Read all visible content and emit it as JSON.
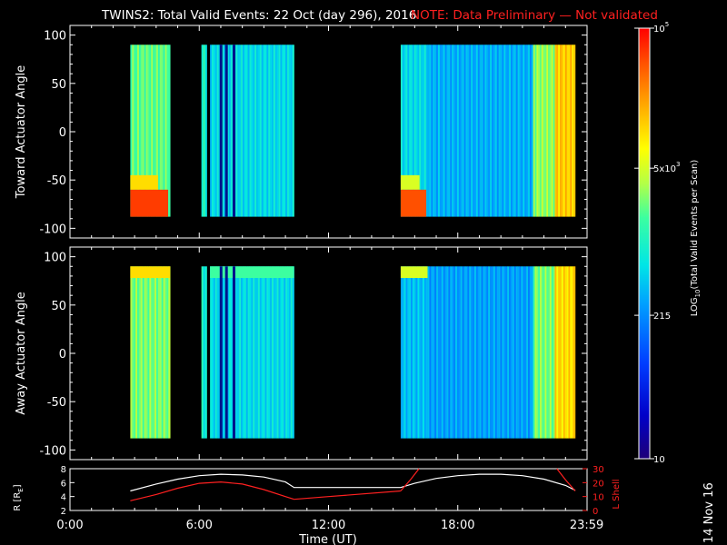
{
  "header": {
    "title": "TWINS2: Total Valid Events: 22 Oct (day 296), 2016",
    "note": "NOTE: Data Preliminary — Not validated"
  },
  "colorbar": {
    "label_prefix": "LOG",
    "label_sub": "10",
    "label_suffix": "(Total Valid  Events per Scan)",
    "ticks": [
      {
        "value": 100000,
        "text": "10",
        "sup": "5"
      },
      {
        "value": 5000,
        "text": "5x10",
        "sup": "3"
      },
      {
        "value": 215,
        "text": "215",
        "sup": ""
      },
      {
        "value": 10,
        "text": "10",
        "sup": ""
      }
    ]
  },
  "footer": {
    "stamp": "14 Nov 16"
  },
  "chart_data": [
    {
      "type": "heatmap",
      "title": "",
      "ylabel": "Toward Actuator Angle",
      "xlabel": "",
      "xlim": [
        0,
        24
      ],
      "ylim": [
        -110,
        110
      ],
      "yticks": [
        100,
        50,
        0,
        -50,
        -100
      ],
      "ytick_labels": [
        "100",
        "50",
        "0",
        "-50",
        "-100"
      ],
      "y_extent": [
        -88,
        90
      ],
      "colorscale": "log10",
      "color_range": [
        10,
        100000
      ],
      "data_intervals_hours": [
        [
          2.8,
          4.65
        ],
        [
          6.1,
          6.35
        ],
        [
          6.5,
          10.4
        ],
        [
          15.35,
          23.45
        ]
      ],
      "dark_stripes_hours": [
        6.95,
        7.2,
        7.55
      ],
      "columns": [
        {
          "t0": 2.8,
          "t1": 4.65,
          "level": 2.9,
          "low_angle_level": 4.7
        },
        {
          "t0": 6.1,
          "t1": 6.35,
          "level": 2.5
        },
        {
          "t0": 6.5,
          "t1": 10.4,
          "level": 2.2
        },
        {
          "t0": 15.35,
          "t1": 16.6,
          "level": 2.2,
          "low_angle_level": 4.6
        },
        {
          "t0": 16.6,
          "t1": 21.5,
          "level": 1.9
        },
        {
          "t0": 21.5,
          "t1": 22.5,
          "level": 3.1
        },
        {
          "t0": 22.5,
          "t1": 23.45,
          "level": 3.9
        }
      ]
    },
    {
      "type": "heatmap",
      "title": "",
      "ylabel": "Away Actuator Angle",
      "xlabel": "",
      "xlim": [
        0,
        24
      ],
      "ylim": [
        -110,
        110
      ],
      "yticks": [
        100,
        50,
        0,
        -50,
        -100
      ],
      "ytick_labels": [
        "100",
        "50",
        "0",
        "-50",
        "-100"
      ],
      "y_extent": [
        -88,
        90
      ],
      "colorscale": "log10",
      "color_range": [
        10,
        100000
      ],
      "data_intervals_hours": [
        [
          2.8,
          4.65
        ],
        [
          6.1,
          6.35
        ],
        [
          6.5,
          10.4
        ],
        [
          15.35,
          23.45
        ]
      ],
      "dark_stripes_hours": [
        6.95,
        7.2,
        7.55
      ],
      "columns": [
        {
          "t0": 2.8,
          "t1": 4.65,
          "level": 3.0,
          "high_angle_level": 3.8
        },
        {
          "t0": 6.1,
          "t1": 6.35,
          "level": 2.4
        },
        {
          "t0": 6.5,
          "t1": 10.4,
          "level": 2.2,
          "high_angle_level": 2.8
        },
        {
          "t0": 15.35,
          "t1": 16.6,
          "level": 2.0,
          "high_angle_level": 3.4
        },
        {
          "t0": 16.6,
          "t1": 21.5,
          "level": 1.8
        },
        {
          "t0": 21.5,
          "t1": 22.5,
          "level": 3.0
        },
        {
          "t0": 22.5,
          "t1": 23.45,
          "level": 3.8
        }
      ]
    },
    {
      "type": "line",
      "title": "",
      "xlabel": "Time (UT)",
      "xlim": [
        0,
        24
      ],
      "xticks": [
        0,
        6,
        12,
        18,
        23.983
      ],
      "xtick_labels": [
        "0:00",
        "6:00",
        "12:00",
        "18:00",
        "23:59"
      ],
      "ylabel_left": "R [R",
      "ylabel_left_sub": "E",
      "ylabel_left_suffix": "]",
      "ylim_left": [
        2,
        8
      ],
      "yticks_left": [
        2,
        4,
        6,
        8
      ],
      "ylabel_right": "L Shell",
      "ylim_right": [
        0,
        30
      ],
      "yticks_right": [
        0,
        10,
        20,
        30
      ],
      "series": [
        {
          "axis": "left",
          "color": "#ffffff",
          "x": [
            2.8,
            4,
            5,
            6,
            7,
            8,
            9,
            10,
            10.4,
            12,
            14,
            15.35,
            16,
            17,
            18,
            19,
            20,
            21,
            22,
            23,
            23.45
          ],
          "y": [
            4.8,
            5.8,
            6.5,
            7.0,
            7.2,
            7.1,
            6.8,
            6.1,
            5.3,
            5.3,
            5.3,
            5.3,
            5.9,
            6.6,
            7.0,
            7.2,
            7.2,
            7.0,
            6.5,
            5.6,
            4.9
          ]
        },
        {
          "axis": "right",
          "color": "#ff2020",
          "segments": [
            {
              "x": [
                2.8,
                4,
                5,
                6,
                7,
                8,
                9,
                10,
                10.4
              ],
              "y": [
                7,
                11.5,
                16,
                19.5,
                20.5,
                19,
                15,
                10,
                8
              ]
            },
            {
              "x": [
                10.4,
                12,
                15.35
              ],
              "y": [
                8,
                10,
                14
              ]
            },
            {
              "x": [
                15.35,
                15.8,
                16.2
              ],
              "y": [
                14,
                22,
                31
              ]
            },
            {
              "x": [
                22.6,
                23.0,
                23.45
              ],
              "y": [
                31,
                22,
                14
              ]
            }
          ]
        }
      ]
    }
  ]
}
